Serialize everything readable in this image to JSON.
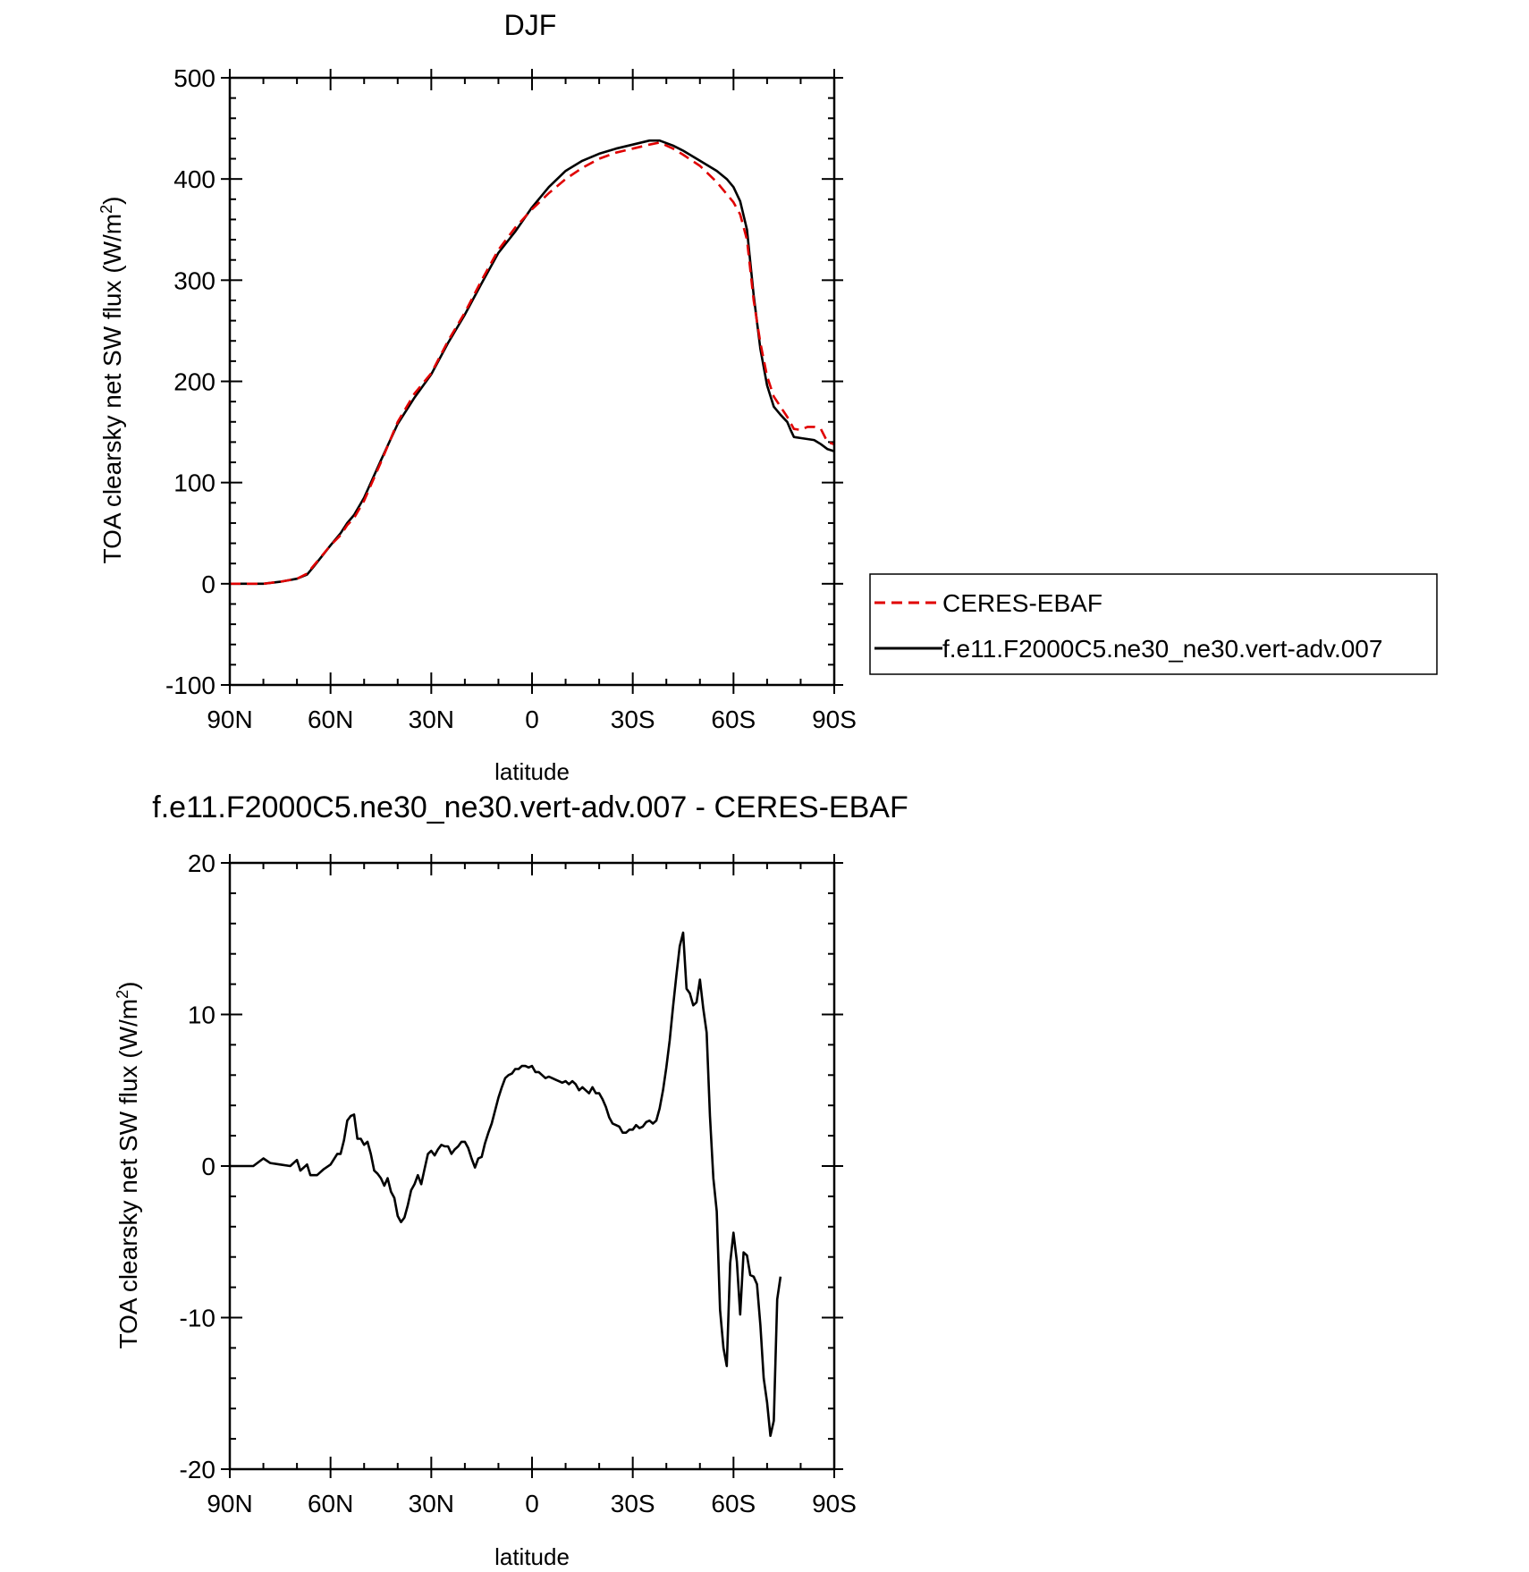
{
  "chart_data": [
    {
      "type": "line",
      "title": "DJF",
      "xlabel": "latitude",
      "ylabel": "TOA clearsky net SW flux (W/m",
      "ylabel_sup": "2",
      "ylabel_close": ")",
      "xlim": [
        90,
        -90
      ],
      "ylim": [
        -100,
        500
      ],
      "x_ticks": [
        90,
        60,
        30,
        0,
        -30,
        -60,
        -90
      ],
      "x_tick_labels": [
        "90N",
        "60N",
        "30N",
        "0",
        "30S",
        "60S",
        "90S"
      ],
      "y_ticks": [
        -100,
        0,
        100,
        200,
        300,
        400,
        500
      ],
      "y_tick_labels": [
        "-100",
        "0",
        "100",
        "200",
        "300",
        "400",
        "500"
      ],
      "legend": "right",
      "series": [
        {
          "name": "CERES-EBAF",
          "color": "#e00000",
          "dash": "dashed",
          "points": [
            [
              90,
              0
            ],
            [
              85,
              0
            ],
            [
              80,
              0
            ],
            [
              75,
              2
            ],
            [
              70,
              5
            ],
            [
              67,
              10
            ],
            [
              65,
              18
            ],
            [
              60,
              38
            ],
            [
              57,
              48
            ],
            [
              55,
              58
            ],
            [
              53,
              65
            ],
            [
              50,
              82
            ],
            [
              45,
              120
            ],
            [
              40,
              160
            ],
            [
              35,
              188
            ],
            [
              30,
              208
            ],
            [
              25,
              240
            ],
            [
              20,
              268
            ],
            [
              15,
              300
            ],
            [
              10,
              330
            ],
            [
              5,
              352
            ],
            [
              0,
              370
            ],
            [
              -5,
              386
            ],
            [
              -10,
              400
            ],
            [
              -15,
              411
            ],
            [
              -20,
              420
            ],
            [
              -25,
              426
            ],
            [
              -30,
              430
            ],
            [
              -35,
              434
            ],
            [
              -38,
              436
            ],
            [
              -42,
              430
            ],
            [
              -45,
              424
            ],
            [
              -50,
              413
            ],
            [
              -55,
              397
            ],
            [
              -58,
              385
            ],
            [
              -60,
              377
            ],
            [
              -62,
              365
            ],
            [
              -64,
              340
            ],
            [
              -66,
              280
            ],
            [
              -68,
              238
            ],
            [
              -70,
              205
            ],
            [
              -72,
              185
            ],
            [
              -74,
              175
            ],
            [
              -76,
              165
            ],
            [
              -78,
              153
            ],
            [
              -80,
              152
            ],
            [
              -82,
              155
            ],
            [
              -84,
              155
            ],
            [
              -86,
              153
            ],
            [
              -88,
              140
            ],
            [
              -90,
              138
            ]
          ]
        },
        {
          "name": "f.e11.F2000C5.ne30_ne30.vert-adv.007",
          "color": "#000000",
          "dash": "solid",
          "points": [
            [
              90,
              0
            ],
            [
              85,
              0
            ],
            [
              80,
              0
            ],
            [
              75,
              2
            ],
            [
              70,
              5
            ],
            [
              67,
              9
            ],
            [
              65,
              17
            ],
            [
              60,
              38
            ],
            [
              57,
              50
            ],
            [
              55,
              60
            ],
            [
              53,
              68
            ],
            [
              50,
              85
            ],
            [
              45,
              122
            ],
            [
              40,
              158
            ],
            [
              35,
              184
            ],
            [
              30,
              207
            ],
            [
              25,
              238
            ],
            [
              20,
              266
            ],
            [
              15,
              297
            ],
            [
              10,
              327
            ],
            [
              5,
              348
            ],
            [
              0,
              372
            ],
            [
              -5,
              392
            ],
            [
              -10,
              408
            ],
            [
              -15,
              418
            ],
            [
              -20,
              425
            ],
            [
              -25,
              430
            ],
            [
              -30,
              434
            ],
            [
              -35,
              438
            ],
            [
              -38,
              438
            ],
            [
              -42,
              433
            ],
            [
              -45,
              428
            ],
            [
              -50,
              418
            ],
            [
              -55,
              408
            ],
            [
              -58,
              400
            ],
            [
              -60,
              392
            ],
            [
              -62,
              378
            ],
            [
              -64,
              350
            ],
            [
              -66,
              285
            ],
            [
              -68,
              232
            ],
            [
              -70,
              196
            ],
            [
              -72,
              175
            ],
            [
              -74,
              167
            ],
            [
              -76,
              160
            ],
            [
              -77,
              152
            ],
            [
              -78,
              145
            ],
            [
              -80,
              144
            ],
            [
              -82,
              143
            ],
            [
              -84,
              142
            ],
            [
              -86,
              138
            ],
            [
              -88,
              133
            ],
            [
              -90,
              131
            ]
          ]
        }
      ]
    },
    {
      "type": "line",
      "title": "f.e11.F2000C5.ne30_ne30.vert-adv.007 - CERES-EBAF",
      "xlabel": "latitude",
      "ylabel": "TOA clearsky net SW flux (W/m",
      "ylabel_sup": "2",
      "ylabel_close": ")",
      "xlim": [
        90,
        -90
      ],
      "ylim": [
        -20,
        20
      ],
      "x_ticks": [
        90,
        60,
        30,
        0,
        -30,
        -60,
        -90
      ],
      "x_tick_labels": [
        "90N",
        "60N",
        "30N",
        "0",
        "30S",
        "60S",
        "90S"
      ],
      "y_ticks": [
        -20,
        -10,
        0,
        10,
        20
      ],
      "y_tick_labels": [
        "-20",
        "-10",
        "0",
        "10",
        "20"
      ],
      "series": [
        {
          "color": "#000000",
          "dash": "solid",
          "points": [
            [
              90,
              0
            ],
            [
              83,
              0
            ],
            [
              80,
              0.5
            ],
            [
              78,
              0.2
            ],
            [
              75,
              0.1
            ],
            [
              72,
              0
            ],
            [
              70,
              0.4
            ],
            [
              69,
              -0.3
            ],
            [
              67,
              0.1
            ],
            [
              66,
              -0.6
            ],
            [
              64,
              -0.6
            ],
            [
              62,
              -0.2
            ],
            [
              60,
              0.1
            ],
            [
              58,
              0.8
            ],
            [
              57,
              0.8
            ],
            [
              56,
              1.7
            ],
            [
              55,
              3
            ],
            [
              54,
              3.3
            ],
            [
              53,
              3.4
            ],
            [
              52,
              1.8
            ],
            [
              51,
              1.8
            ],
            [
              50,
              1.4
            ],
            [
              49,
              1.6
            ],
            [
              48,
              0.8
            ],
            [
              47,
              -0.3
            ],
            [
              46,
              -0.5
            ],
            [
              45,
              -0.8
            ],
            [
              44,
              -1.3
            ],
            [
              43,
              -0.8
            ],
            [
              42,
              -1.7
            ],
            [
              41,
              -2.1
            ],
            [
              40,
              -3.3
            ],
            [
              39,
              -3.7
            ],
            [
              38,
              -3.4
            ],
            [
              37,
              -2.6
            ],
            [
              36,
              -1.6
            ],
            [
              35,
              -1.2
            ],
            [
              34,
              -0.6
            ],
            [
              33,
              -1.2
            ],
            [
              32,
              -0.2
            ],
            [
              31,
              0.8
            ],
            [
              30,
              1
            ],
            [
              29,
              0.7
            ],
            [
              28,
              1.1
            ],
            [
              27,
              1.4
            ],
            [
              26,
              1.3
            ],
            [
              25,
              1.3
            ],
            [
              24,
              0.8
            ],
            [
              23,
              1.1
            ],
            [
              22,
              1.3
            ],
            [
              21,
              1.6
            ],
            [
              20,
              1.6
            ],
            [
              19,
              1.2
            ],
            [
              18,
              0.5
            ],
            [
              17,
              -0.1
            ],
            [
              16,
              0.5
            ],
            [
              15,
              0.6
            ],
            [
              14,
              1.5
            ],
            [
              13,
              2.2
            ],
            [
              12,
              2.8
            ],
            [
              10,
              4.5
            ],
            [
              9,
              5.2
            ],
            [
              8,
              5.8
            ],
            [
              7,
              6
            ],
            [
              6,
              6.1
            ],
            [
              5,
              6.4
            ],
            [
              4,
              6.4
            ],
            [
              3,
              6.6
            ],
            [
              2,
              6.6
            ],
            [
              1,
              6.5
            ],
            [
              0,
              6.6
            ],
            [
              -1,
              6.2
            ],
            [
              -2,
              6.2
            ],
            [
              -3,
              6
            ],
            [
              -4,
              5.8
            ],
            [
              -5,
              5.9
            ],
            [
              -6,
              5.8
            ],
            [
              -7,
              5.7
            ],
            [
              -8,
              5.6
            ],
            [
              -9,
              5.5
            ],
            [
              -10,
              5.6
            ],
            [
              -11,
              5.4
            ],
            [
              -12,
              5.6
            ],
            [
              -13,
              5.4
            ],
            [
              -14,
              5
            ],
            [
              -15,
              5.2
            ],
            [
              -16,
              5
            ],
            [
              -17,
              4.8
            ],
            [
              -18,
              5.2
            ],
            [
              -19,
              4.8
            ],
            [
              -20,
              4.8
            ],
            [
              -21,
              4.4
            ],
            [
              -22,
              3.9
            ],
            [
              -23,
              3.2
            ],
            [
              -24,
              2.8
            ],
            [
              -25,
              2.7
            ],
            [
              -26,
              2.6
            ],
            [
              -27,
              2.2
            ],
            [
              -28,
              2.2
            ],
            [
              -29,
              2.4
            ],
            [
              -30,
              2.4
            ],
            [
              -31,
              2.7
            ],
            [
              -32,
              2.5
            ],
            [
              -33,
              2.6
            ],
            [
              -34,
              2.9
            ],
            [
              -35,
              3
            ],
            [
              -36,
              2.8
            ],
            [
              -37,
              3
            ],
            [
              -38,
              3.8
            ],
            [
              -39,
              5
            ],
            [
              -40,
              6.5
            ],
            [
              -41,
              8.3
            ],
            [
              -42,
              10.5
            ],
            [
              -43,
              12.6
            ],
            [
              -44,
              14.5
            ],
            [
              -45,
              15.4
            ],
            [
              -46,
              11.7
            ],
            [
              -47,
              11.4
            ],
            [
              -48,
              10.6
            ],
            [
              -49,
              10.8
            ],
            [
              -50,
              12.3
            ],
            [
              -51,
              10.4
            ],
            [
              -52,
              8.8
            ],
            [
              -53,
              3.3
            ],
            [
              -54,
              -0.8
            ],
            [
              -55,
              -3
            ],
            [
              -56,
              -9.5
            ],
            [
              -57,
              -12
            ],
            [
              -58,
              -13.2
            ],
            [
              -59,
              -6.4
            ],
            [
              -60,
              -4.4
            ],
            [
              -61,
              -6.3
            ],
            [
              -62,
              -9.8
            ],
            [
              -63,
              -5.7
            ],
            [
              -64,
              -5.9
            ],
            [
              -65,
              -7.2
            ],
            [
              -66,
              -7.3
            ],
            [
              -67,
              -7.8
            ],
            [
              -68,
              -10.5
            ],
            [
              -69,
              -14
            ],
            [
              -70,
              -15.6
            ],
            [
              -71,
              -17.8
            ],
            [
              -72,
              -16.8
            ],
            [
              -73,
              -8.8
            ],
            [
              -74,
              -7.3
            ]
          ]
        }
      ]
    }
  ]
}
